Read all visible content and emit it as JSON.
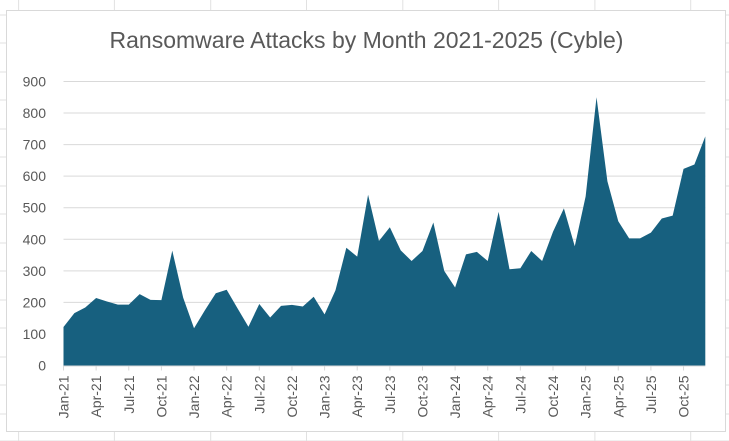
{
  "chart_data": {
    "type": "area",
    "title": "Ransomware Attacks by Month 2021-2025 (Cyble)",
    "xlabel": "",
    "ylabel": "",
    "ylim": [
      0,
      900
    ],
    "yticks": [
      0,
      100,
      200,
      300,
      400,
      500,
      600,
      700,
      800,
      900
    ],
    "grid": true,
    "legend": "none",
    "color": "#17607F",
    "x_tick_labels": [
      "Jan-21",
      "Apr-21",
      "Jul-21",
      "Oct-21",
      "Jan-22",
      "Apr-22",
      "Jul-22",
      "Oct-22",
      "Jan-23",
      "Apr-23",
      "Jul-23",
      "Oct-23",
      "Jan-24",
      "Apr-24",
      "Jul-24",
      "Oct-24",
      "Jan-25",
      "Apr-25",
      "Jul-25",
      "Oct-25"
    ],
    "categories": [
      "Jan-21",
      "Feb-21",
      "Mar-21",
      "Apr-21",
      "May-21",
      "Jun-21",
      "Jul-21",
      "Aug-21",
      "Sep-21",
      "Oct-21",
      "Nov-21",
      "Dec-21",
      "Jan-22",
      "Feb-22",
      "Mar-22",
      "Apr-22",
      "May-22",
      "Jun-22",
      "Jul-22",
      "Aug-22",
      "Sep-22",
      "Oct-22",
      "Nov-22",
      "Dec-22",
      "Jan-23",
      "Feb-23",
      "Mar-23",
      "Apr-23",
      "May-23",
      "Jun-23",
      "Jul-23",
      "Aug-23",
      "Sep-23",
      "Oct-23",
      "Nov-23",
      "Dec-23",
      "Jan-24",
      "Feb-24",
      "Mar-24",
      "Apr-24",
      "May-24",
      "Jun-24",
      "Jul-24",
      "Aug-24",
      "Sep-24",
      "Oct-24",
      "Nov-24",
      "Dec-24",
      "Jan-25",
      "Feb-25",
      "Mar-25",
      "Apr-25",
      "May-25",
      "Jun-25",
      "Jul-25",
      "Aug-25",
      "Sep-25",
      "Oct-25",
      "Nov-25",
      "Dec-25"
    ],
    "values": [
      122,
      166,
      184,
      214,
      203,
      193,
      193,
      226,
      208,
      207,
      364,
      215,
      118,
      175,
      229,
      240,
      181,
      123,
      195,
      152,
      189,
      192,
      187,
      218,
      162,
      238,
      373,
      345,
      541,
      395,
      438,
      365,
      331,
      363,
      453,
      300,
      247,
      352,
      360,
      331,
      487,
      305,
      308,
      363,
      331,
      424,
      498,
      378,
      536,
      850,
      584,
      457,
      403,
      403,
      421,
      466,
      475,
      623,
      637,
      726
    ]
  }
}
